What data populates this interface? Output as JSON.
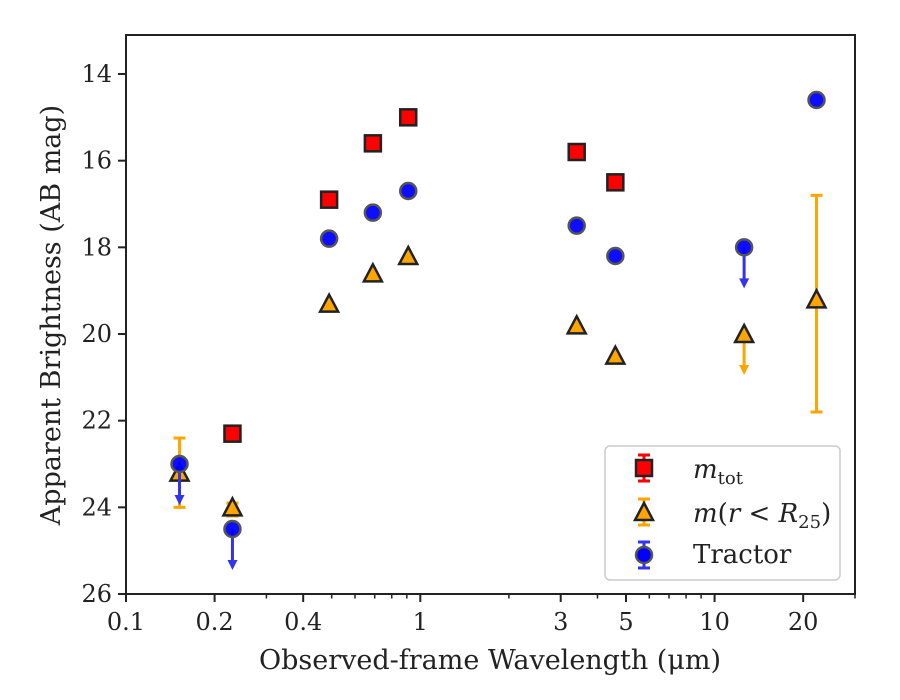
{
  "chart_data": {
    "type": "scatter",
    "xscale": "log",
    "yaxis_inverted": true,
    "xlim": [
      0.1,
      30
    ],
    "ylim": [
      26,
      13.1
    ],
    "xlabel": "Observed-frame Wavelength (μm)",
    "ylabel": "Apparent Brightness (AB mag)",
    "xticks": [
      {
        "value": 0.1,
        "label": "0.1"
      },
      {
        "value": 0.2,
        "label": "0.2"
      },
      {
        "value": 0.4,
        "label": "0.4"
      },
      {
        "value": 1,
        "label": "1"
      },
      {
        "value": 3,
        "label": "3"
      },
      {
        "value": 5,
        "label": "5"
      },
      {
        "value": 10,
        "label": "10"
      },
      {
        "value": 20,
        "label": "20"
      }
    ],
    "xminor": [
      0.3,
      0.5,
      0.6,
      0.7,
      0.8,
      0.9,
      2,
      4,
      6,
      7,
      8,
      9,
      30
    ],
    "yticks": [
      {
        "value": 14,
        "label": "14"
      },
      {
        "value": 16,
        "label": "16"
      },
      {
        "value": 18,
        "label": "18"
      },
      {
        "value": 20,
        "label": "20"
      },
      {
        "value": 22,
        "label": "22"
      },
      {
        "value": 24,
        "label": "24"
      },
      {
        "value": 26,
        "label": "26"
      }
    ],
    "grid": false,
    "legend_position": "lower-right",
    "series": [
      {
        "name": "m_tot",
        "marker": "square",
        "color": "#ff0000",
        "errcolor": "#ff0000",
        "points": [
          {
            "x": 0.23,
            "y": 22.3
          },
          {
            "x": 0.49,
            "y": 16.9
          },
          {
            "x": 0.69,
            "y": 15.6
          },
          {
            "x": 0.91,
            "y": 15.0
          },
          {
            "x": 3.4,
            "y": 15.8
          },
          {
            "x": 4.6,
            "y": 16.5
          }
        ]
      },
      {
        "name": "m(r < R_25)",
        "marker": "triangle",
        "color": "#ffa500",
        "errcolor": "#ffa500",
        "points": [
          {
            "x": 0.152,
            "y": 23.2,
            "err": [
              22.4,
              24.0
            ]
          },
          {
            "x": 0.23,
            "y": 24.0,
            "err": [
              23.9,
              24.2
            ]
          },
          {
            "x": 0.49,
            "y": 19.3
          },
          {
            "x": 0.69,
            "y": 18.6
          },
          {
            "x": 0.91,
            "y": 18.2
          },
          {
            "x": 3.4,
            "y": 19.8
          },
          {
            "x": 4.6,
            "y": 20.5
          },
          {
            "x": 12.6,
            "y": 20.0,
            "upper_limit": true
          },
          {
            "x": 22.2,
            "y": 19.2,
            "err": [
              16.8,
              21.8
            ]
          }
        ]
      },
      {
        "name": "Tractor",
        "marker": "circle",
        "color": "#0000ff",
        "errcolor": "#3333ee",
        "points": [
          {
            "x": 0.152,
            "y": 23.0,
            "upper_limit": true
          },
          {
            "x": 0.23,
            "y": 24.5,
            "upper_limit": true
          },
          {
            "x": 0.49,
            "y": 17.8
          },
          {
            "x": 0.69,
            "y": 17.2
          },
          {
            "x": 0.91,
            "y": 16.7
          },
          {
            "x": 3.4,
            "y": 17.5
          },
          {
            "x": 4.6,
            "y": 18.2
          },
          {
            "x": 12.6,
            "y": 18.0,
            "upper_limit": true
          },
          {
            "x": 22.2,
            "y": 14.6
          }
        ]
      }
    ]
  }
}
